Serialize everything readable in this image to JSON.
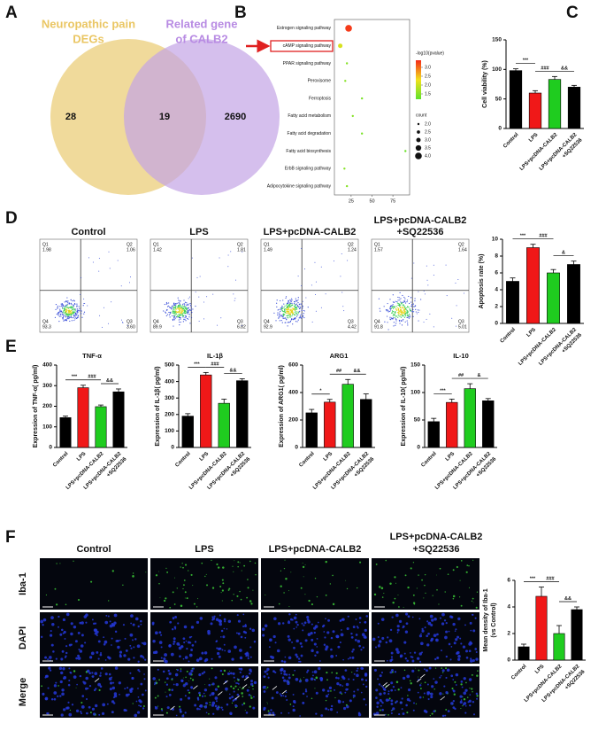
{
  "panel_labels": [
    "A",
    "B",
    "C",
    "D",
    "E",
    "F"
  ],
  "venn": {
    "left_label": [
      "Neuropathic pain",
      "DEGs"
    ],
    "right_label": [
      "Related gene",
      "of CALB2"
    ],
    "left_only": 28,
    "overlap": 19,
    "right_only": 2690
  },
  "flow": {
    "quadrant_names": [
      "Q1",
      "Q2",
      "Q3",
      "Q4"
    ],
    "plots": [
      {
        "title": [
          "Control"
        ],
        "quadrants": [
          "1.98",
          "1.06",
          "3.60",
          "93.3"
        ]
      },
      {
        "title": [
          "LPS"
        ],
        "quadrants": [
          "1.42",
          "1.81",
          "6.82",
          "89.9"
        ]
      },
      {
        "title": [
          "LPS+pcDNA-CALB2"
        ],
        "quadrants": [
          "1.49",
          "1.24",
          "4.42",
          "92.9"
        ]
      },
      {
        "title": [
          "LPS+pcDNA-CALB2",
          "+SQ22536"
        ],
        "quadrants": [
          "1.57",
          "1.64",
          "5.01",
          "91.8"
        ]
      }
    ]
  },
  "microscopy": {
    "columns": [
      [
        "Control"
      ],
      [
        "LPS"
      ],
      [
        "LPS+pcDNA-CALB2"
      ],
      [
        "LPS+pcDNA-CALB2",
        "+SQ22536"
      ]
    ],
    "rows": [
      "Iba-1",
      "DAPI",
      "Merge"
    ]
  },
  "chart_data": [
    {
      "type": "dot",
      "categories": [
        "Estrogen signaling pathway",
        "cAMP signaling pathway",
        "PPAR signaling pathway",
        "Peroxisome",
        "Ferroptosis",
        "Fatty acid metabolism",
        "Fatty acid degradation",
        "Fatty acid biosynthesis",
        "ErbB signaling pathway",
        "Adipocytokine signaling pathway"
      ],
      "values": [
        22,
        12,
        20,
        18,
        38,
        27,
        38,
        90,
        17,
        20
      ],
      "counts": [
        4,
        3,
        2,
        2,
        2,
        2,
        2,
        2,
        2,
        2
      ],
      "neg_log10_p": [
        3.3,
        2.1,
        1.5,
        1.5,
        1.4,
        1.5,
        1.4,
        1.3,
        1.5,
        1.5
      ],
      "xlim": [
        5,
        95
      ],
      "xticks": [
        25,
        50,
        75
      ],
      "color_title": "-log10(pvalue)",
      "colorlim": [
        1.2,
        3.4
      ],
      "colormap": [
        "#5ee22b",
        "#f2e11c",
        "#f52a1a"
      ],
      "color_ticks": [
        1.5,
        {
          "value": 2,
          "label": "2.0"
        },
        2.5,
        {
          "value": 3,
          "label": "3.0"
        }
      ],
      "size_title": "count",
      "size_ticks": [
        {
          "value": 2,
          "label": "2.0"
        },
        2.5,
        {
          "value": 3,
          "label": "3.0"
        },
        3.5,
        {
          "value": 4,
          "label": "4.0"
        }
      ]
    },
    {
      "type": "bar",
      "ylabel": [
        "Cell viability (%)"
      ],
      "categories": [
        [
          "Control"
        ],
        [
          "LPS"
        ],
        [
          "LPS+pcDNA-CALB2"
        ],
        [
          "LPS+pcDNA-CALB2",
          "+SQ22536"
        ]
      ],
      "values": [
        98,
        60,
        83,
        70
      ],
      "errors": [
        3,
        4,
        5,
        3
      ],
      "colors": [
        "#000000",
        "#f01818",
        "#1fcc1f",
        "#000000"
      ],
      "ylim": [
        0,
        150
      ],
      "yticks": [
        0,
        50,
        100,
        150
      ],
      "annotations": [
        "***",
        "###",
        "&&"
      ]
    },
    {
      "type": "bar",
      "ylabel": [
        "Apoptosis rate (%)"
      ],
      "categories": [
        [
          "Control"
        ],
        [
          "LPS"
        ],
        [
          "LPS+pcDNA-CALB2"
        ],
        [
          "LPS+pcDNA-CALB2",
          "+SQ22536"
        ]
      ],
      "values": [
        5.0,
        9.0,
        6.0,
        7.0
      ],
      "errors": [
        0.4,
        0.4,
        0.4,
        0.4
      ],
      "colors": [
        "#000000",
        "#f01818",
        "#1fcc1f",
        "#000000"
      ],
      "ylim": [
        0,
        10
      ],
      "yticks": [
        0,
        2,
        4,
        6,
        8,
        10
      ],
      "annotations": [
        "***",
        "###",
        "&"
      ]
    },
    {
      "type": "bar",
      "title": "TNF-α",
      "ylabel": [
        "Expression of TNF-α( pg/ml)"
      ],
      "categories": [
        [
          "Control"
        ],
        [
          "LPS"
        ],
        [
          "LPS+pcDNA-CALB2"
        ],
        [
          "LPS+pcDNA-CALB2",
          "+SQ22536"
        ]
      ],
      "values": [
        145,
        290,
        198,
        270
      ],
      "errors": [
        7,
        12,
        8,
        14
      ],
      "colors": [
        "#000000",
        "#f01818",
        "#1fcc1f",
        "#000000"
      ],
      "ylim": [
        0,
        400
      ],
      "yticks": [
        0,
        100,
        200,
        300,
        400
      ],
      "annotations": [
        "***",
        "###",
        "&&"
      ]
    },
    {
      "type": "bar",
      "title": "IL-1β",
      "ylabel": [
        "Expression of IL-1β( pg/ml)"
      ],
      "categories": [
        [
          "Control"
        ],
        [
          "LPS"
        ],
        [
          "LPS+pcDNA-CALB2"
        ],
        [
          "LPS+pcDNA-CALB2",
          "+SQ22536"
        ]
      ],
      "values": [
        190,
        440,
        268,
        405
      ],
      "errors": [
        15,
        15,
        25,
        12
      ],
      "colors": [
        "#000000",
        "#f01818",
        "#1fcc1f",
        "#000000"
      ],
      "ylim": [
        0,
        500
      ],
      "yticks": [
        0,
        100,
        200,
        300,
        400,
        500
      ],
      "annotations": [
        "***",
        "###",
        "&&"
      ]
    },
    {
      "type": "bar",
      "title": "ARG1",
      "ylabel": [
        "Expression of ARG1( pg/ml)"
      ],
      "categories": [
        [
          "Control"
        ],
        [
          "LPS"
        ],
        [
          "LPS+pcDNA-CALB2"
        ],
        [
          "LPS+pcDNA-CALB2",
          "+SQ22536"
        ]
      ],
      "values": [
        252,
        330,
        460,
        350
      ],
      "errors": [
        25,
        20,
        35,
        40
      ],
      "colors": [
        "#000000",
        "#f01818",
        "#1fcc1f",
        "#000000"
      ],
      "ylim": [
        0,
        600
      ],
      "yticks": [
        0,
        200,
        400,
        600
      ],
      "annotations": [
        "*",
        "##",
        "&&"
      ]
    },
    {
      "type": "bar",
      "title": "IL-10",
      "ylabel": [
        "Expression of IL-10( pg/ml)"
      ],
      "categories": [
        [
          "Control"
        ],
        [
          "LPS"
        ],
        [
          "LPS+pcDNA-CALB2"
        ],
        [
          "LPS+pcDNA-CALB2",
          "+SQ22536"
        ]
      ],
      "values": [
        47,
        82,
        107,
        85
      ],
      "errors": [
        6,
        6,
        9,
        4
      ],
      "colors": [
        "#000000",
        "#f01818",
        "#1fcc1f",
        "#000000"
      ],
      "ylim": [
        0,
        150
      ],
      "yticks": [
        0,
        50,
        100,
        150
      ],
      "annotations": [
        "***",
        "##",
        "&"
      ]
    },
    {
      "type": "bar",
      "ylabel": [
        "Mean density of Iba-1",
        "(vs Control)"
      ],
      "categories": [
        [
          "Control"
        ],
        [
          "LPS"
        ],
        [
          "LPS+pcDNA-CALB2"
        ],
        [
          "LPS+pcDNA-CALB2",
          "+SQ22536"
        ]
      ],
      "values": [
        1.0,
        4.8,
        2.0,
        3.8
      ],
      "errors": [
        0.2,
        0.7,
        0.6,
        0.2
      ],
      "colors": [
        "#000000",
        "#f01818",
        "#1fcc1f",
        "#000000"
      ],
      "ylim": [
        0,
        6
      ],
      "yticks": [
        0,
        2,
        4,
        6
      ],
      "annotations": [
        "***",
        "###",
        "&&"
      ]
    }
  ]
}
